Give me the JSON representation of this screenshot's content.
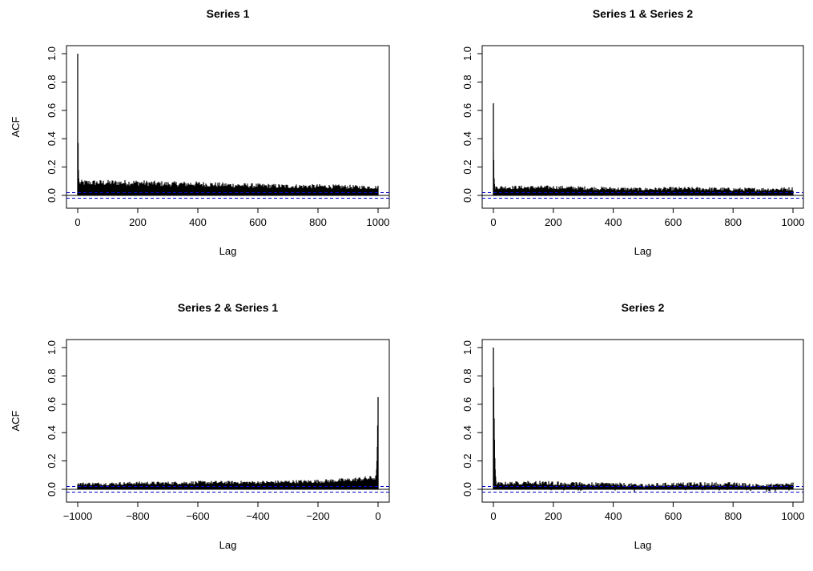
{
  "chart_data": [
    {
      "type": "bar",
      "title": "Series 1",
      "xlabel": "Lag",
      "ylabel": "ACF",
      "xlim": [
        0,
        1000
      ],
      "ylim": [
        0,
        1
      ],
      "xticks": [
        "0",
        "200",
        "400",
        "600",
        "800",
        "1000"
      ],
      "yticks": [
        "0.0",
        "0.2",
        "0.4",
        "0.6",
        "0.8",
        "1.0"
      ],
      "confidence_band": 0.02,
      "grid": false,
      "spike": {
        "lag": 0,
        "values": [
          1.0,
          0.37,
          0.18,
          0.12
        ]
      },
      "envelope": {
        "x": [
          5,
          100,
          200,
          300,
          400,
          500,
          600,
          700,
          800,
          900,
          1000
        ],
        "upper": [
          0.11,
          0.11,
          0.11,
          0.1,
          0.1,
          0.09,
          0.085,
          0.08,
          0.08,
          0.075,
          0.07
        ],
        "lower": [
          0.02,
          0.02,
          0.02,
          0.015,
          0.015,
          0.015,
          0.01,
          0.01,
          0.01,
          0.01,
          0.01
        ]
      }
    },
    {
      "type": "bar",
      "title": "Series 1 & Series 2",
      "xlabel": "Lag",
      "ylabel": "",
      "xlim": [
        0,
        1000
      ],
      "ylim": [
        0,
        1
      ],
      "xticks": [
        "0",
        "200",
        "400",
        "600",
        "800",
        "1000"
      ],
      "yticks": [
        "0.0",
        "0.2",
        "0.4",
        "0.6",
        "0.8",
        "1.0"
      ],
      "confidence_band": 0.02,
      "grid": false,
      "spike": {
        "lag": 0,
        "values": [
          0.65,
          0.25,
          0.12,
          0.08
        ]
      },
      "envelope": {
        "x": [
          5,
          100,
          200,
          300,
          400,
          500,
          600,
          700,
          800,
          900,
          1000
        ],
        "upper": [
          0.07,
          0.07,
          0.07,
          0.065,
          0.06,
          0.055,
          0.06,
          0.06,
          0.055,
          0.055,
          0.06
        ],
        "lower": [
          0.01,
          0.01,
          0.01,
          0.005,
          0.005,
          0.005,
          0.005,
          0.0,
          0.0,
          0.0,
          0.0
        ]
      }
    },
    {
      "type": "bar",
      "title": "Series 2 & Series 1",
      "xlabel": "Lag",
      "ylabel": "ACF",
      "xlim": [
        -1000,
        0
      ],
      "ylim": [
        0,
        1
      ],
      "xticks": [
        "−1000",
        "−800",
        "−600",
        "−400",
        "−200",
        "0"
      ],
      "yticks": [
        "0.0",
        "0.2",
        "0.4",
        "0.6",
        "0.8",
        "1.0"
      ],
      "confidence_band": 0.02,
      "grid": false,
      "spike": {
        "lag": 0,
        "values": [
          0.65,
          0.45,
          0.3,
          0.2,
          0.14,
          0.1
        ]
      },
      "envelope": {
        "x": [
          -1000,
          -900,
          -800,
          -700,
          -600,
          -500,
          -400,
          -300,
          -200,
          -100,
          -5
        ],
        "upper": [
          0.05,
          0.05,
          0.055,
          0.055,
          0.06,
          0.06,
          0.06,
          0.065,
          0.07,
          0.08,
          0.1
        ],
        "lower": [
          0.0,
          0.0,
          0.005,
          0.005,
          0.005,
          0.01,
          0.01,
          0.01,
          0.01,
          0.015,
          0.02
        ]
      }
    },
    {
      "type": "bar",
      "title": "Series 2",
      "xlabel": "Lag",
      "ylabel": "",
      "xlim": [
        0,
        1000
      ],
      "ylim": [
        0,
        1
      ],
      "xticks": [
        "0",
        "200",
        "400",
        "600",
        "800",
        "1000"
      ],
      "yticks": [
        "0.0",
        "0.2",
        "0.4",
        "0.6",
        "0.8",
        "1.0"
      ],
      "confidence_band": 0.02,
      "grid": false,
      "spike": {
        "lag": 0,
        "values": [
          1.0,
          0.72,
          0.5,
          0.35,
          0.22,
          0.14,
          0.09,
          0.06
        ]
      },
      "envelope": {
        "x": [
          10,
          100,
          200,
          300,
          400,
          500,
          600,
          700,
          800,
          900,
          1000
        ],
        "upper": [
          0.05,
          0.06,
          0.06,
          0.05,
          0.05,
          0.04,
          0.05,
          0.05,
          0.05,
          0.04,
          0.05
        ],
        "lower": [
          0.0,
          0.0,
          -0.01,
          -0.01,
          -0.01,
          -0.02,
          -0.01,
          -0.01,
          -0.01,
          -0.02,
          -0.01
        ]
      }
    }
  ],
  "colors": {
    "bars": "#000000",
    "confidence": "#0000cd",
    "axis": "#000000"
  }
}
